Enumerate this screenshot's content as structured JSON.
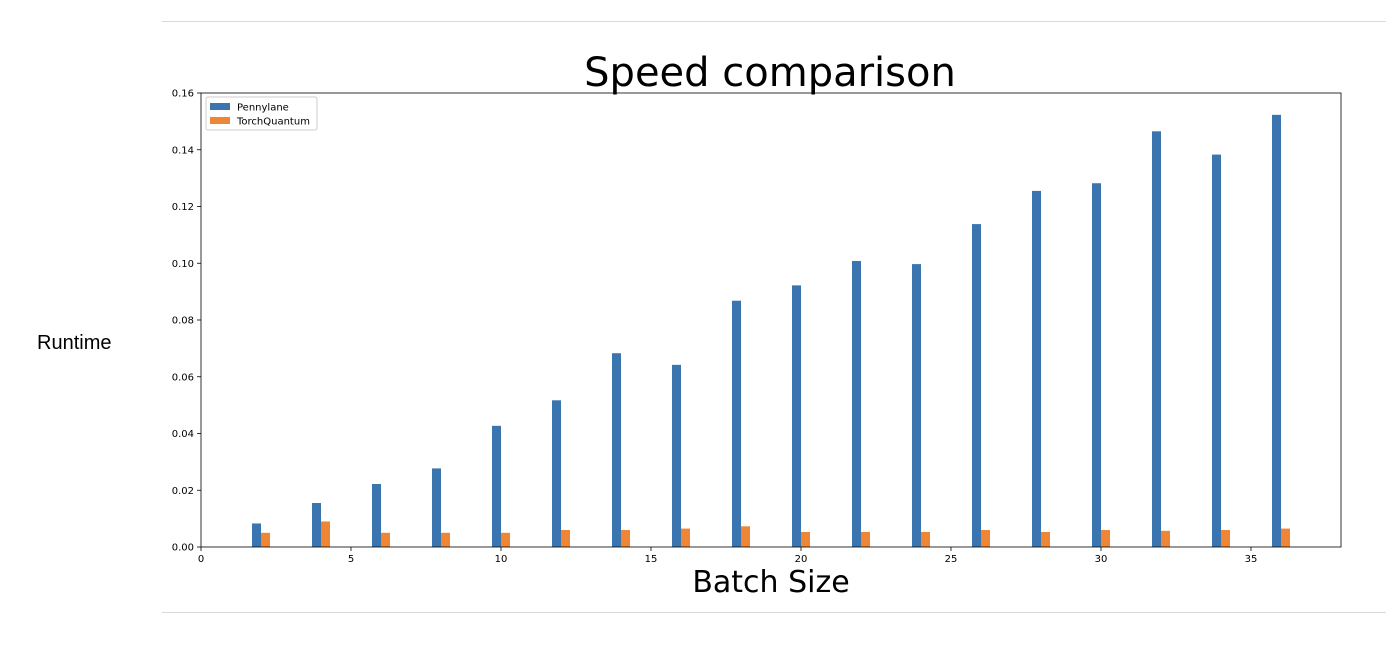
{
  "chart_data": {
    "type": "bar",
    "title": "Speed comparison",
    "xlabel": "Batch Size",
    "ylabel": "Runtime",
    "x": [
      2,
      4,
      6,
      8,
      10,
      12,
      14,
      16,
      18,
      20,
      22,
      24,
      26,
      28,
      30,
      32,
      34,
      36
    ],
    "series": [
      {
        "name": "Pennylane",
        "color": "#3b75af",
        "values": [
          0.0083,
          0.0155,
          0.0222,
          0.0277,
          0.0427,
          0.0517,
          0.0683,
          0.0642,
          0.0868,
          0.0922,
          0.1008,
          0.0997,
          0.1138,
          0.1255,
          0.1282,
          0.1465,
          0.1383,
          0.1523
        ]
      },
      {
        "name": "TorchQuantum",
        "color": "#ef8636",
        "values": [
          0.005,
          0.009,
          0.005,
          0.005,
          0.005,
          0.006,
          0.006,
          0.0065,
          0.0073,
          0.0053,
          0.0053,
          0.0053,
          0.006,
          0.0053,
          0.006,
          0.0057,
          0.006,
          0.0065
        ]
      }
    ],
    "xlim": [
      0,
      38
    ],
    "ylim": [
      0,
      0.16
    ],
    "xticks": [
      0,
      5,
      10,
      15,
      20,
      25,
      30,
      35
    ],
    "xtick_labels": [
      "0",
      "5",
      "10",
      "15",
      "20",
      "25",
      "30",
      "35"
    ],
    "yticks": [
      0,
      0.02,
      0.04,
      0.06,
      0.08,
      0.1,
      0.12,
      0.14,
      0.16
    ],
    "ytick_labels": [
      "0.00",
      "0.02",
      "0.04",
      "0.06",
      "0.08",
      "0.10",
      "0.12",
      "0.14",
      "0.16"
    ],
    "bar_width": 0.3,
    "grid": false,
    "legend_position": "top-left"
  }
}
